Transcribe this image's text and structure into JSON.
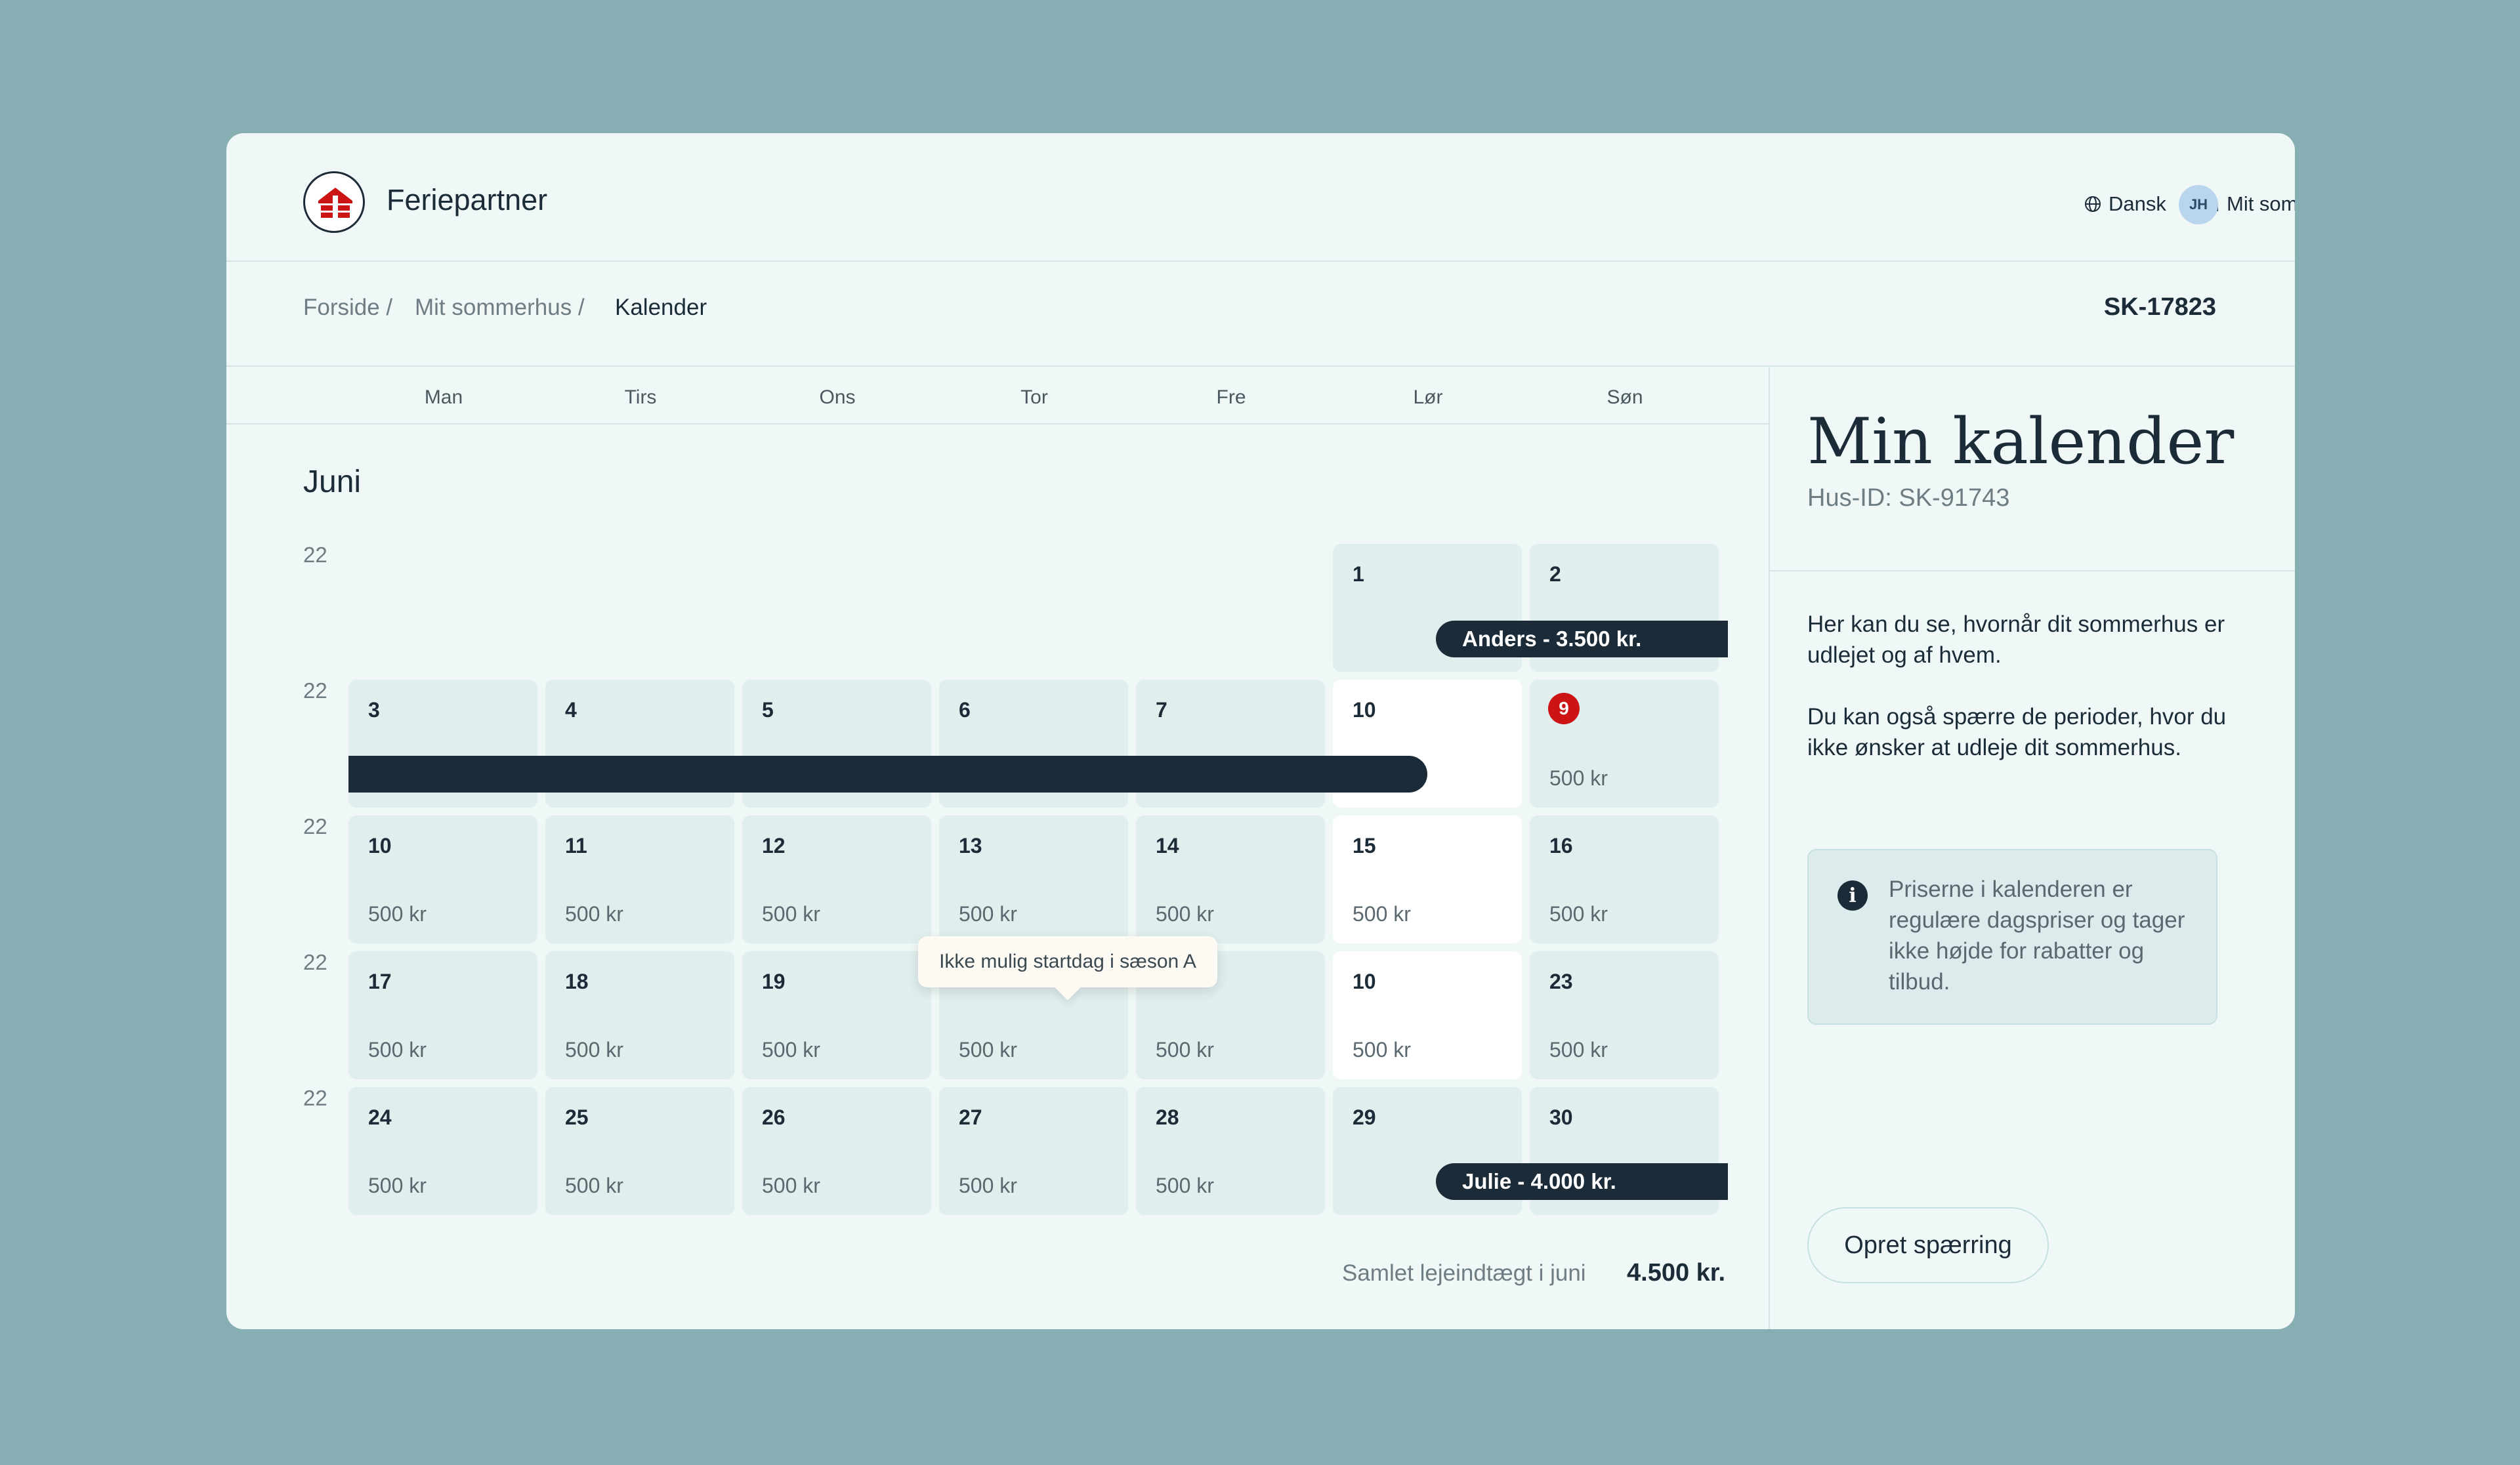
{
  "header": {
    "brand": "Feriepartner",
    "language": "Dansk",
    "my_house": "Mit sommerhus",
    "avatar_initials": "JH"
  },
  "breadcrumb": {
    "items": [
      "Forside /",
      "Mit sommerhus /",
      "Kalender"
    ],
    "ref_id": "SK-17823"
  },
  "calendar": {
    "weekdays": [
      "Man",
      "Tirs",
      "Ons",
      "Tor",
      "Fre",
      "Lør",
      "Søn"
    ],
    "month": "Juni",
    "week_numbers": [
      "22",
      "22",
      "22",
      "22",
      "22"
    ],
    "weeks": [
      [
        null,
        null,
        null,
        null,
        null,
        {
          "n": "1",
          "p": ""
        },
        {
          "n": "2",
          "p": ""
        }
      ],
      [
        {
          "n": "3",
          "p": ""
        },
        {
          "n": "4",
          "p": ""
        },
        {
          "n": "5",
          "p": ""
        },
        {
          "n": "6",
          "p": ""
        },
        {
          "n": "7",
          "p": ""
        },
        {
          "n": "10",
          "p": "",
          "white": true
        },
        {
          "n": "9",
          "p": "500 kr",
          "badge": true
        }
      ],
      [
        {
          "n": "10",
          "p": "500 kr"
        },
        {
          "n": "11",
          "p": "500 kr"
        },
        {
          "n": "12",
          "p": "500 kr"
        },
        {
          "n": "13",
          "p": "500 kr"
        },
        {
          "n": "14",
          "p": "500 kr"
        },
        {
          "n": "15",
          "p": "500 kr",
          "white": true
        },
        {
          "n": "16",
          "p": "500 kr"
        }
      ],
      [
        {
          "n": "17",
          "p": "500 kr"
        },
        {
          "n": "18",
          "p": "500 kr"
        },
        {
          "n": "19",
          "p": "500 kr"
        },
        {
          "n": "",
          "p": "500 kr"
        },
        {
          "n": "",
          "p": "500 kr"
        },
        {
          "n": "10",
          "p": "500 kr",
          "white": true
        },
        {
          "n": "23",
          "p": "500 kr"
        }
      ],
      [
        {
          "n": "24",
          "p": "500 kr"
        },
        {
          "n": "25",
          "p": "500 kr"
        },
        {
          "n": "26",
          "p": "500 kr"
        },
        {
          "n": "27",
          "p": "500 kr"
        },
        {
          "n": "28",
          "p": "500 kr"
        },
        {
          "n": "29",
          "p": ""
        },
        {
          "n": "30",
          "p": ""
        }
      ]
    ],
    "bookings": [
      "Anders - 3.500 kr.",
      "Julie - 4.000 kr."
    ],
    "tooltip": "Ikke mulig startdag i sæson A",
    "total_label": "Samlet lejeindtægt i juni",
    "total_value": "4.500 kr."
  },
  "side": {
    "title": "Min kalender",
    "house_id": "Hus-ID: SK-91743",
    "text1": "Her kan du se, hvornår dit sommerhus er udlejet og af hvem.",
    "text2": "Du kan også spærre de perioder, hvor du ikke ønsker at udleje dit sommerhus.",
    "info": "Priserne i kalenderen er regulære dagspriser og tager ikke højde for rabatter og tilbud.",
    "cta": "Opret spærring"
  },
  "colors": {
    "background": "#87aeb2",
    "card": "#eff8f7",
    "cell": "#e0eeee",
    "booking": "#1b2b37",
    "logo_red": "#cc1414"
  }
}
